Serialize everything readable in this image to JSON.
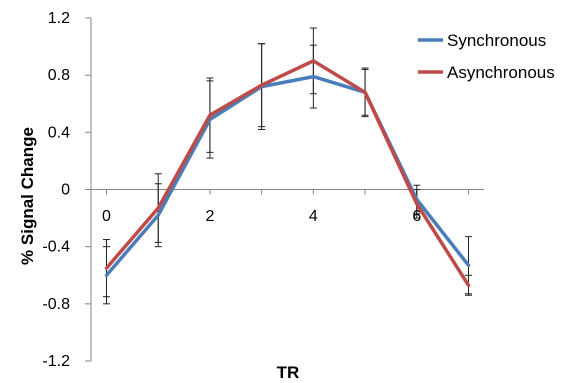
{
  "chart_data": {
    "type": "line",
    "x": [
      0,
      1,
      2,
      3,
      4,
      5,
      6,
      7
    ],
    "x_tick_labels": [
      "0",
      "2",
      "4",
      "6"
    ],
    "x_tick_values": [
      0,
      2,
      4,
      6
    ],
    "y_tick_labels": [
      "1.2",
      "0.8",
      "0.4",
      "0",
      "-0.4",
      "-0.8",
      "-1.2"
    ],
    "y_tick_values": [
      1.2,
      0.8,
      0.4,
      0,
      -0.4,
      -0.8,
      -1.2
    ],
    "xlabel": "TR",
    "ylabel": "% Signal Change",
    "xlim": [
      -0.3,
      7.3
    ],
    "ylim": [
      -1.2,
      1.2
    ],
    "grid": false,
    "legend_position": "top-right",
    "series": [
      {
        "name": "Synchronous",
        "color": "#4a7ebb",
        "values": [
          -0.6,
          -0.18,
          0.49,
          0.72,
          0.79,
          0.68,
          -0.07,
          -0.53
        ],
        "errors": [
          0.2,
          0.22,
          0.27,
          0.3,
          0.22,
          0.16,
          0.1,
          0.2
        ]
      },
      {
        "name": "Asynchronous",
        "color": "#be4b48",
        "values": [
          -0.55,
          -0.13,
          0.52,
          0.73,
          0.9,
          0.68,
          -0.1,
          -0.67
        ],
        "errors": [
          0.2,
          0.24,
          0.26,
          0.29,
          0.23,
          0.17,
          0.1,
          0.07
        ]
      }
    ]
  }
}
